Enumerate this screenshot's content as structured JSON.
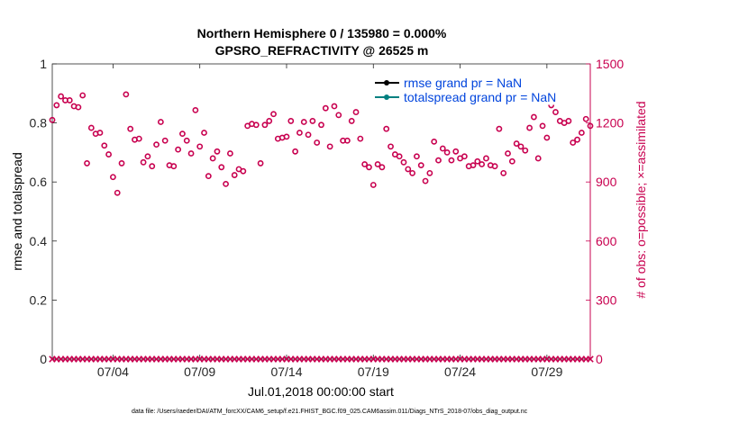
{
  "chart_data": {
    "type": "scatter",
    "title": "Northern Hemisphere 0 / 135980 = 0.000%",
    "subtitle": "GPSRO_REFRACTIVITY @ 26525 m",
    "xlabel": "Jul.01,2018 00:00:00 start",
    "ylabel_left": "rmse and totalspread",
    "ylabel_right": "# of obs: o=possible; ×=assimilated",
    "footnote": "data file: /Users/raeder/DAI/ATM_forcXX/CAM6_setup/f.e21.FHIST_BGC.f09_025.CAM6assim.011/Diags_NTrS_2018-07/obs_diag_output.nc",
    "xlim": [
      0.5,
      31.5
    ],
    "ylim_left": [
      0,
      1
    ],
    "ylim_right": [
      0,
      1500
    ],
    "x_ticks": [
      {
        "x": 4,
        "label": "07/04"
      },
      {
        "x": 9,
        "label": "07/09"
      },
      {
        "x": 14,
        "label": "07/14"
      },
      {
        "x": 19,
        "label": "07/19"
      },
      {
        "x": 24,
        "label": "07/24"
      },
      {
        "x": 29,
        "label": "07/29"
      }
    ],
    "y_left_ticks": [
      {
        "y": 0,
        "label": "0"
      },
      {
        "y": 0.2,
        "label": "0.2"
      },
      {
        "y": 0.4,
        "label": "0.4"
      },
      {
        "y": 0.6,
        "label": "0.6"
      },
      {
        "y": 0.8,
        "label": "0.8"
      },
      {
        "y": 1,
        "label": "1"
      }
    ],
    "y_right_ticks": [
      {
        "y": 0,
        "label": "0"
      },
      {
        "y": 300,
        "label": "300"
      },
      {
        "y": 600,
        "label": "600"
      },
      {
        "y": 900,
        "label": "900"
      },
      {
        "y": 1200,
        "label": "1200"
      },
      {
        "y": 1500,
        "label": "1500"
      }
    ],
    "legend": [
      {
        "label": "rmse grand pr = NaN",
        "color": "#000000"
      },
      {
        "label": "totalspread grand pr = NaN",
        "color": "#008080"
      }
    ],
    "legend_placement": "top-right",
    "series": [
      {
        "name": "possible",
        "marker": "circle",
        "color": "#c8004f",
        "x": [
          0.5,
          0.75,
          1.0,
          1.25,
          1.5,
          1.75,
          2.0,
          2.25,
          2.5,
          2.75,
          3.0,
          3.25,
          3.5,
          3.75,
          4.0,
          4.25,
          4.5,
          4.75,
          5.0,
          5.25,
          5.5,
          5.75,
          6.0,
          6.25,
          6.5,
          6.75,
          7.0,
          7.25,
          7.5,
          7.75,
          8.0,
          8.25,
          8.5,
          8.75,
          9.0,
          9.25,
          9.5,
          9.75,
          10.0,
          10.25,
          10.5,
          10.75,
          11.0,
          11.25,
          11.5,
          11.75,
          12.0,
          12.25,
          12.5,
          12.75,
          13.0,
          13.25,
          13.5,
          13.75,
          14.0,
          14.25,
          14.5,
          14.75,
          15.0,
          15.25,
          15.5,
          15.75,
          16.0,
          16.25,
          16.5,
          16.75,
          17.0,
          17.25,
          17.5,
          17.75,
          18.0,
          18.25,
          18.5,
          18.75,
          19.0,
          19.25,
          19.5,
          19.75,
          20.0,
          20.25,
          20.5,
          20.75,
          21.0,
          21.25,
          21.5,
          21.75,
          22.0,
          22.25,
          22.5,
          22.75,
          23.0,
          23.25,
          23.5,
          23.75,
          24.0,
          24.25,
          24.5,
          24.75,
          25.0,
          25.25,
          25.5,
          25.75,
          26.0,
          26.25,
          26.5,
          26.75,
          27.0,
          27.25,
          27.5,
          27.75,
          28.0,
          28.25,
          28.5,
          28.75,
          29.0,
          29.25,
          29.5,
          29.75,
          30.0,
          30.25,
          30.5,
          30.75,
          31.0,
          31.25,
          31.5
        ],
        "values": [
          1215,
          1290,
          1335,
          1315,
          1315,
          1285,
          1280,
          1340,
          995,
          1175,
          1145,
          1150,
          1085,
          1040,
          925,
          845,
          995,
          1345,
          1170,
          1115,
          1120,
          1000,
          1030,
          980,
          1090,
          1205,
          1110,
          985,
          980,
          1065,
          1145,
          1110,
          1045,
          1265,
          1080,
          1150,
          930,
          1020,
          1055,
          975,
          890,
          1045,
          935,
          965,
          955,
          1185,
          1195,
          1190,
          995,
          1190,
          1210,
          1245,
          1120,
          1125,
          1130,
          1210,
          1055,
          1150,
          1205,
          1140,
          1210,
          1100,
          1190,
          1275,
          1080,
          1285,
          1240,
          1110,
          1110,
          1210,
          1255,
          1120,
          990,
          975,
          885,
          990,
          975,
          1170,
          1080,
          1040,
          1030,
          1000,
          965,
          945,
          1030,
          985,
          905,
          945,
          1105,
          1010,
          1070,
          1050,
          1010,
          1055,
          1020,
          1030,
          980,
          985,
          1005,
          990,
          1020,
          985,
          980,
          1170,
          945,
          1045,
          1005,
          1095,
          1080,
          1060,
          1175,
          1230,
          1020,
          1185,
          1125,
          1290,
          1255,
          1210,
          1200,
          1210,
          1100,
          1115,
          1150,
          1220,
          1185
        ]
      },
      {
        "name": "assimilated",
        "marker": "x",
        "color": "#c8004f",
        "x": [
          0.5,
          0.75,
          1.0,
          1.25,
          1.5,
          1.75,
          2.0,
          2.25,
          2.5,
          2.75,
          3.0,
          3.25,
          3.5,
          3.75,
          4.0,
          4.25,
          4.5,
          4.75,
          5.0,
          5.25,
          5.5,
          5.75,
          6.0,
          6.25,
          6.5,
          6.75,
          7.0,
          7.25,
          7.5,
          7.75,
          8.0,
          8.25,
          8.5,
          8.75,
          9.0,
          9.25,
          9.5,
          9.75,
          10.0,
          10.25,
          10.5,
          10.75,
          11.0,
          11.25,
          11.5,
          11.75,
          12.0,
          12.25,
          12.5,
          12.75,
          13.0,
          13.25,
          13.5,
          13.75,
          14.0,
          14.25,
          14.5,
          14.75,
          15.0,
          15.25,
          15.5,
          15.75,
          16.0,
          16.25,
          16.5,
          16.75,
          17.0,
          17.25,
          17.5,
          17.75,
          18.0,
          18.25,
          18.5,
          18.75,
          19.0,
          19.25,
          19.5,
          19.75,
          20.0,
          20.25,
          20.5,
          20.75,
          21.0,
          21.25,
          21.5,
          21.75,
          22.0,
          22.25,
          22.5,
          22.75,
          23.0,
          23.25,
          23.5,
          23.75,
          24.0,
          24.25,
          24.5,
          24.75,
          25.0,
          25.25,
          25.5,
          25.75,
          26.0,
          26.25,
          26.5,
          26.75,
          27.0,
          27.25,
          27.5,
          27.75,
          28.0,
          28.25,
          28.5,
          28.75,
          29.0,
          29.25,
          29.5,
          29.75,
          30.0,
          30.25,
          30.5,
          30.75,
          31.0,
          31.25,
          31.5
        ],
        "values": [
          0,
          0,
          0,
          0,
          0,
          0,
          0,
          0,
          0,
          0,
          0,
          0,
          0,
          0,
          0,
          0,
          0,
          0,
          0,
          0,
          0,
          0,
          0,
          0,
          0,
          0,
          0,
          0,
          0,
          0,
          0,
          0,
          0,
          0,
          0,
          0,
          0,
          0,
          0,
          0,
          0,
          0,
          0,
          0,
          0,
          0,
          0,
          0,
          0,
          0,
          0,
          0,
          0,
          0,
          0,
          0,
          0,
          0,
          0,
          0,
          0,
          0,
          0,
          0,
          0,
          0,
          0,
          0,
          0,
          0,
          0,
          0,
          0,
          0,
          0,
          0,
          0,
          0,
          0,
          0,
          0,
          0,
          0,
          0,
          0,
          0,
          0,
          0,
          0,
          0,
          0,
          0,
          0,
          0,
          0,
          0,
          0,
          0,
          0,
          0,
          0,
          0,
          0,
          0,
          0,
          0,
          0,
          0,
          0,
          0,
          0,
          0,
          0,
          0,
          0,
          0,
          0,
          0,
          0,
          0,
          0,
          0,
          0,
          0,
          0
        ]
      }
    ]
  }
}
